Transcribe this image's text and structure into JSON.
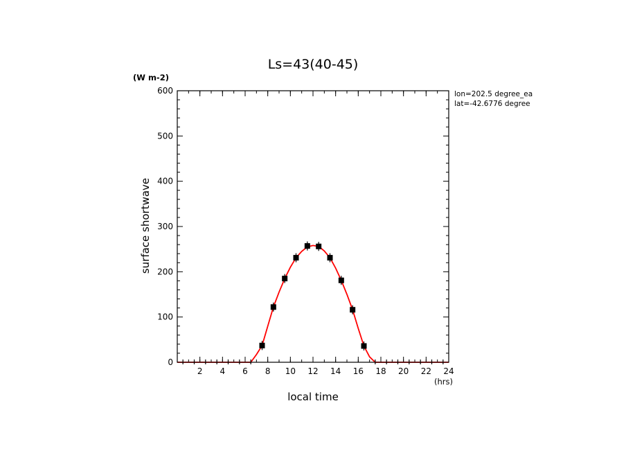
{
  "chart_data": {
    "type": "scatter",
    "title": "Ls=43(40-45)",
    "xlabel": "local time",
    "ylabel": "surface shortwave",
    "x_unit": "(hrs)",
    "y_unit": "(W m-2)",
    "annotations": [
      "lon=202.5 degree_ea",
      "lat=-42.6776 degree"
    ],
    "xlim": [
      0,
      24
    ],
    "ylim": [
      0,
      600
    ],
    "x_ticks": [
      2,
      4,
      6,
      8,
      10,
      12,
      14,
      16,
      18,
      20,
      22,
      24
    ],
    "y_ticks": [
      0,
      100,
      200,
      300,
      400,
      500,
      600
    ],
    "grid": false,
    "colors": {
      "points": "#000000",
      "curve": "#ff0000"
    },
    "series": [
      {
        "style": "markers-with-errorbars",
        "x": [
          0.5,
          1.5,
          2.5,
          3.5,
          4.5,
          5.5,
          6.5,
          7.5,
          8.5,
          9.5,
          10.5,
          11.5,
          12.5,
          13.5,
          14.5,
          15.5,
          16.5,
          17.5,
          18.5,
          19.5,
          20.5,
          21.5,
          22.5,
          23.5
        ],
        "y": [
          0,
          0,
          0,
          0,
          0,
          0,
          0,
          37,
          122,
          185,
          231,
          257,
          256,
          231,
          181,
          116,
          36,
          0,
          0,
          0,
          0,
          0,
          0,
          0
        ],
        "err": [
          0,
          0,
          0,
          0,
          0,
          0,
          0,
          10,
          10,
          10,
          10,
          10,
          10,
          10,
          10,
          10,
          10,
          0,
          0,
          0,
          0,
          0,
          0,
          0
        ]
      },
      {
        "style": "line",
        "x": [
          0,
          1,
          2,
          3,
          4,
          5,
          6,
          6.5,
          7,
          7.5,
          8,
          8.5,
          9,
          9.5,
          10,
          10.5,
          11,
          11.5,
          12,
          12.5,
          13,
          13.5,
          14,
          14.5,
          15,
          15.5,
          16,
          16.5,
          17,
          17.5,
          18,
          19,
          20,
          21,
          22,
          23,
          24
        ],
        "y": [
          0,
          0,
          0,
          0,
          0,
          0,
          0,
          0,
          17,
          37,
          80,
          122,
          155,
          185,
          210,
          231,
          245,
          255,
          258,
          256,
          246,
          231,
          208,
          181,
          150,
          116,
          75,
          36,
          12,
          0,
          0,
          0,
          0,
          0,
          0,
          0,
          0
        ]
      }
    ]
  }
}
